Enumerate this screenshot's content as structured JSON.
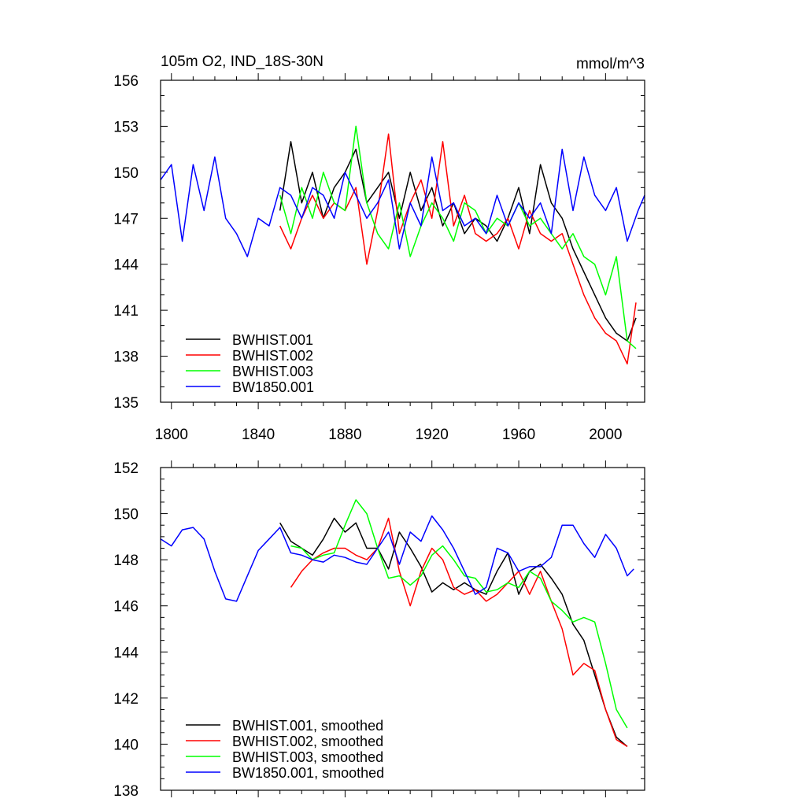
{
  "header": {
    "title": "105m O2, IND_18S-30N",
    "units": "mmol/m^3"
  },
  "colors": {
    "BWHIST.001": "#000000",
    "BWHIST.002": "#ff0000",
    "BWHIST.003": "#00ff00",
    "BW1850.001": "#0000ff"
  },
  "chart_data": [
    {
      "type": "line",
      "title": "105m O2, IND_18S-30N",
      "units_label": "mmol/m^3",
      "xlim": [
        1795,
        2018
      ],
      "ylim": [
        135,
        156
      ],
      "xticks": [
        1800,
        1840,
        1880,
        1920,
        1960,
        2000
      ],
      "yticks": [
        135,
        138,
        141,
        144,
        147,
        150,
        153,
        156
      ],
      "legend_position": "bottom-left",
      "series": [
        {
          "name": "BWHIST.001",
          "x": [
            1850,
            1855,
            1860,
            1865,
            1870,
            1875,
            1880,
            1885,
            1890,
            1895,
            1900,
            1905,
            1910,
            1915,
            1920,
            1925,
            1930,
            1935,
            1940,
            1945,
            1950,
            1955,
            1960,
            1965,
            1970,
            1975,
            1980,
            1985,
            1990,
            1995,
            2000,
            2005,
            2010,
            2014
          ],
          "values": [
            147.5,
            152,
            148,
            150,
            147,
            149,
            150,
            151.5,
            148,
            149,
            150,
            147,
            150,
            147.5,
            149,
            146.5,
            148,
            146,
            147,
            146.5,
            145.5,
            147,
            149,
            146,
            150.5,
            148,
            147,
            145,
            143.5,
            142,
            140.5,
            139.5,
            139,
            140.5
          ]
        },
        {
          "name": "BWHIST.002",
          "x": [
            1850,
            1855,
            1860,
            1865,
            1870,
            1875,
            1880,
            1885,
            1890,
            1895,
            1900,
            1905,
            1910,
            1915,
            1920,
            1925,
            1930,
            1935,
            1940,
            1945,
            1950,
            1955,
            1960,
            1965,
            1970,
            1975,
            1980,
            1985,
            1990,
            1995,
            2000,
            2005,
            2010,
            2014
          ],
          "values": [
            146.5,
            145,
            147,
            148.5,
            147,
            148,
            147.5,
            149,
            144,
            147.5,
            152.5,
            146,
            148,
            149.5,
            147,
            152,
            146.5,
            148.5,
            146,
            145.5,
            146,
            147,
            145,
            147.5,
            146,
            145.5,
            146,
            144,
            142,
            140.5,
            139.5,
            139,
            137.5,
            141.5
          ]
        },
        {
          "name": "BWHIST.003",
          "x": [
            1850,
            1855,
            1860,
            1865,
            1870,
            1875,
            1880,
            1885,
            1890,
            1895,
            1900,
            1905,
            1910,
            1915,
            1920,
            1925,
            1930,
            1935,
            1940,
            1945,
            1950,
            1955,
            1960,
            1965,
            1970,
            1975,
            1980,
            1985,
            1990,
            1995,
            2000,
            2005,
            2010,
            2014
          ],
          "values": [
            148.5,
            146,
            149,
            147,
            150,
            148,
            147.5,
            153,
            148,
            146,
            145,
            148,
            144.5,
            146.5,
            148,
            147,
            145.5,
            148,
            147.5,
            146,
            147,
            146.5,
            148,
            146.5,
            147,
            146,
            145,
            146,
            144.5,
            144,
            142,
            144.5,
            139,
            138.5
          ]
        },
        {
          "name": "BW1850.001",
          "x": [
            1795,
            1800,
            1805,
            1810,
            1815,
            1820,
            1825,
            1830,
            1835,
            1840,
            1845,
            1850,
            1855,
            1860,
            1865,
            1870,
            1875,
            1880,
            1885,
            1890,
            1895,
            1900,
            1905,
            1910,
            1915,
            1920,
            1925,
            1930,
            1935,
            1940,
            1945,
            1950,
            1955,
            1960,
            1965,
            1970,
            1975,
            1980,
            1985,
            1990,
            1995,
            2000,
            2005,
            2010,
            2015,
            2018
          ],
          "values": [
            149.5,
            150.5,
            145.5,
            150.5,
            147.5,
            151,
            147,
            146,
            144.5,
            147,
            146.5,
            149,
            148.5,
            147,
            149,
            148.5,
            147,
            150,
            148.5,
            147,
            148,
            149.5,
            145,
            148,
            146.5,
            151,
            147.5,
            148,
            146.5,
            147,
            146,
            148.5,
            146.5,
            148,
            147,
            148,
            146,
            151.5,
            147.5,
            151,
            148.5,
            147.5,
            149,
            145.5,
            147.5,
            148.5
          ]
        }
      ]
    },
    {
      "type": "line",
      "xlim": [
        1795,
        2018
      ],
      "ylim": [
        138,
        152
      ],
      "yticks": [
        138,
        140,
        142,
        144,
        146,
        148,
        150,
        152
      ],
      "legend_position": "bottom-left",
      "series": [
        {
          "name": "BWHIST.001, smoothed",
          "x": [
            1850,
            1855,
            1860,
            1865,
            1870,
            1875,
            1880,
            1885,
            1890,
            1895,
            1900,
            1905,
            1910,
            1915,
            1920,
            1925,
            1930,
            1935,
            1940,
            1945,
            1950,
            1955,
            1960,
            1965,
            1970,
            1975,
            1980,
            1985,
            1990,
            1995,
            2000,
            2005,
            2010
          ],
          "values": [
            149.6,
            148.8,
            148.5,
            148.2,
            148.9,
            149.8,
            149.2,
            149.6,
            148.5,
            148.5,
            147.6,
            149.2,
            148.5,
            147.7,
            146.6,
            147,
            146.7,
            147,
            146.7,
            146.5,
            147.5,
            148.3,
            146.5,
            147.5,
            147.8,
            147.2,
            146.5,
            145.2,
            144.5,
            143,
            141.5,
            140.3,
            139.9
          ]
        },
        {
          "name": "BWHIST.002, smoothed",
          "x": [
            1855,
            1860,
            1865,
            1870,
            1875,
            1880,
            1885,
            1890,
            1895,
            1900,
            1905,
            1910,
            1915,
            1920,
            1925,
            1930,
            1935,
            1940,
            1945,
            1950,
            1955,
            1960,
            1965,
            1970,
            1975,
            1980,
            1985,
            1990,
            1995,
            2000,
            2005,
            2010
          ],
          "values": [
            146.8,
            147.5,
            148,
            148.3,
            148.5,
            148.5,
            148.2,
            148,
            148.5,
            149.8,
            147.5,
            146,
            147.5,
            148.5,
            148,
            146.8,
            146.5,
            146.7,
            146.2,
            146.5,
            147,
            147.5,
            146.5,
            147.5,
            146.2,
            145,
            143,
            143.5,
            143.2,
            141.5,
            140.2,
            139.9
          ]
        },
        {
          "name": "BWHIST.003, smoothed",
          "x": [
            1855,
            1860,
            1865,
            1870,
            1875,
            1880,
            1885,
            1890,
            1895,
            1900,
            1905,
            1910,
            1915,
            1920,
            1925,
            1930,
            1935,
            1940,
            1945,
            1950,
            1955,
            1960,
            1965,
            1970,
            1975,
            1980,
            1985,
            1990,
            1995,
            2000,
            2005,
            2010
          ],
          "values": [
            148.6,
            148.5,
            148,
            148.2,
            148.3,
            149.5,
            150.6,
            150,
            148.5,
            147.2,
            147.3,
            146.9,
            147.3,
            148.2,
            148.6,
            148,
            147.3,
            147.2,
            146.6,
            146.7,
            147,
            146.8,
            147.5,
            147.2,
            146.2,
            145.8,
            145.3,
            145.5,
            145.3,
            143.5,
            141.5,
            140.7
          ]
        },
        {
          "name": "BW1850.001, smoothed",
          "x": [
            1795,
            1800,
            1805,
            1810,
            1815,
            1820,
            1825,
            1830,
            1835,
            1840,
            1845,
            1850,
            1855,
            1860,
            1865,
            1870,
            1875,
            1880,
            1885,
            1890,
            1895,
            1900,
            1905,
            1910,
            1915,
            1920,
            1925,
            1930,
            1935,
            1940,
            1945,
            1950,
            1955,
            1960,
            1965,
            1970,
            1975,
            1980,
            1985,
            1990,
            1995,
            2000,
            2005,
            2010,
            2013
          ],
          "values": [
            148.9,
            148.6,
            149.3,
            149.4,
            148.9,
            147.5,
            146.3,
            146.2,
            147.3,
            148.4,
            148.9,
            149.4,
            148.3,
            148.2,
            148,
            147.9,
            148.2,
            148.1,
            147.9,
            147.8,
            148.5,
            149.2,
            147.8,
            149.2,
            148.8,
            149.9,
            149.3,
            148.5,
            147.5,
            146.5,
            146.8,
            148.5,
            148.3,
            147.5,
            147.7,
            147.7,
            148.1,
            149.5,
            149.5,
            148.7,
            148.1,
            149.1,
            148.5,
            147.3,
            147.6
          ]
        }
      ]
    }
  ]
}
